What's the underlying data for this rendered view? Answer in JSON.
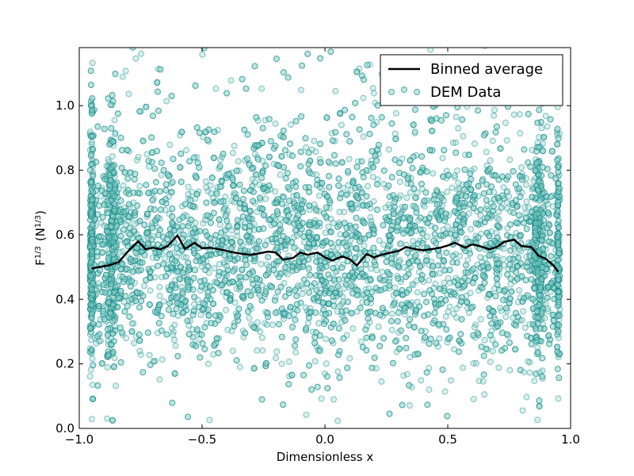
{
  "chart_data": {
    "type": "scatter",
    "xlabel": "Dimensionless x",
    "ylabel": {
      "base": "F",
      "base_exp": "1/3",
      "unit_open": "(N",
      "unit_exp": "1/3",
      "unit_close": ")"
    },
    "xlim": [
      -1.0,
      1.0
    ],
    "ylim": [
      0.0,
      1.18
    ],
    "xticks": [
      -1.0,
      -0.5,
      0.0,
      0.5,
      1.0
    ],
    "xtick_labels": [
      "−1.0",
      "−0.5",
      "0.0",
      "0.5",
      "1.0"
    ],
    "yticks": [
      0.0,
      0.2,
      0.4,
      0.6,
      0.8,
      1.0
    ],
    "ytick_labels": [
      "0.0",
      "0.2",
      "0.4",
      "0.6",
      "0.8",
      "1.0"
    ],
    "grid": false,
    "legend_position": "top-right",
    "series": [
      {
        "name": "Binned average",
        "kind": "line",
        "color": "#000000",
        "x": [
          -0.95,
          -0.92,
          -0.88,
          -0.84,
          -0.8,
          -0.76,
          -0.73,
          -0.7,
          -0.67,
          -0.64,
          -0.6,
          -0.57,
          -0.53,
          -0.5,
          -0.47,
          -0.43,
          -0.4,
          -0.37,
          -0.33,
          -0.3,
          -0.27,
          -0.23,
          -0.2,
          -0.17,
          -0.13,
          -0.1,
          -0.07,
          -0.03,
          0.0,
          0.03,
          0.07,
          0.1,
          0.13,
          0.17,
          0.2,
          0.23,
          0.27,
          0.3,
          0.33,
          0.37,
          0.4,
          0.43,
          0.47,
          0.5,
          0.53,
          0.57,
          0.6,
          0.63,
          0.67,
          0.7,
          0.73,
          0.77,
          0.8,
          0.84,
          0.87,
          0.9,
          0.93,
          0.95
        ],
        "y": [
          0.495,
          0.5,
          0.505,
          0.515,
          0.55,
          0.58,
          0.555,
          0.56,
          0.555,
          0.565,
          0.598,
          0.556,
          0.575,
          0.558,
          0.56,
          0.555,
          0.55,
          0.545,
          0.54,
          0.538,
          0.542,
          0.548,
          0.545,
          0.523,
          0.528,
          0.545,
          0.538,
          0.545,
          0.53,
          0.52,
          0.533,
          0.525,
          0.505,
          0.54,
          0.53,
          0.538,
          0.545,
          0.55,
          0.562,
          0.555,
          0.552,
          0.555,
          0.56,
          0.567,
          0.575,
          0.56,
          0.57,
          0.565,
          0.555,
          0.562,
          0.578,
          0.585,
          0.565,
          0.562,
          0.535,
          0.525,
          0.505,
          0.485
        ]
      },
      {
        "name": "DEM Data",
        "kind": "scatter",
        "color": "#008080",
        "fill": "#8fd1c8",
        "generated": {
          "n_points": 6000,
          "x_range": [
            -0.95,
            0.95
          ],
          "y_mean": 0.55,
          "y_sd": 0.18,
          "edge_clusters": [
            -0.95,
            -0.87,
            0.87,
            0.95
          ],
          "seed": 12345
        }
      }
    ]
  }
}
